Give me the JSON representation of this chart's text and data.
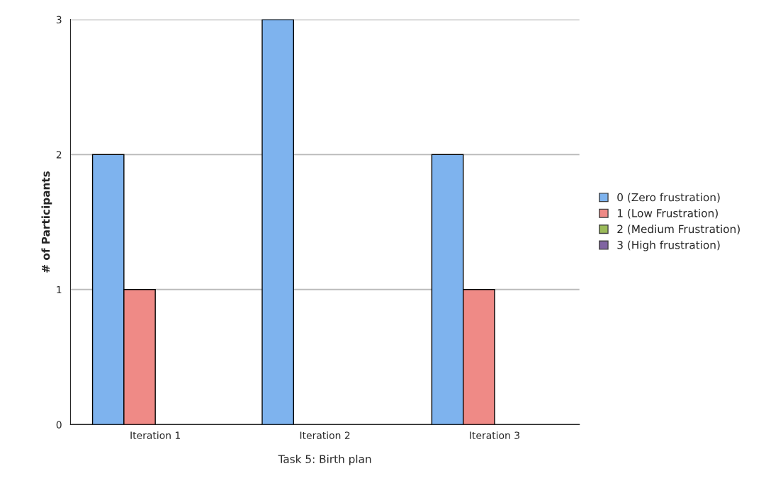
{
  "chart_data": {
    "type": "bar",
    "xlabel": "Task 5: Birth plan",
    "ylabel": "# of Participants",
    "categories": [
      "Iteration 1",
      "Iteration 2",
      "Iteration 3"
    ],
    "series": [
      {
        "name": "0 (Zero frustration)",
        "color": "#7eb3ee",
        "values": [
          2,
          3,
          2
        ]
      },
      {
        "name": "1 (Low Frustration)",
        "color": "#ef8a86",
        "values": [
          1,
          0,
          1
        ]
      },
      {
        "name": "2 (Medium Frustration)",
        "color": "#9bbb59",
        "values": [
          0,
          0,
          0
        ]
      },
      {
        "name": "3 (High frustration)",
        "color": "#8064a2",
        "values": [
          0,
          0,
          0
        ]
      }
    ],
    "ylim": [
      0,
      3
    ],
    "yticks": [
      0,
      1,
      2,
      3
    ],
    "grid": "y",
    "legend": "right"
  }
}
